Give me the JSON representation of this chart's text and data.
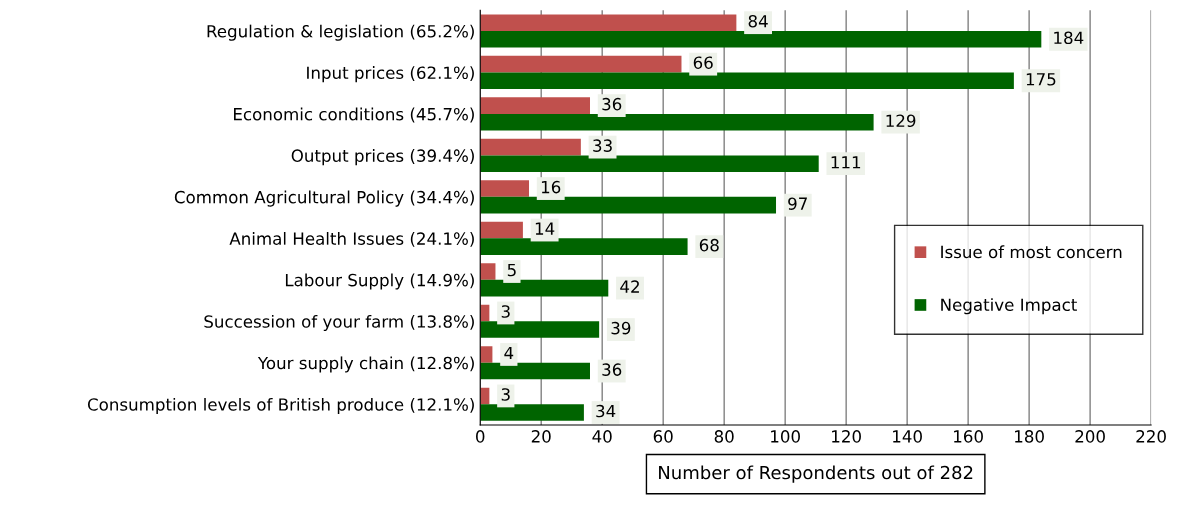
{
  "chart_data": {
    "type": "bar",
    "orientation": "horizontal",
    "categories": [
      "Regulation & legislation (65.2%)",
      "Input prices (62.1%)",
      "Economic conditions (45.7%)",
      "Output prices (39.4%)",
      "Common Agricultural Policy (34.4%)",
      "Animal Health Issues (24.1%)",
      "Labour Supply (14.9%)",
      "Succession of your farm (13.8%)",
      "Your supply chain (12.8%)",
      "Consumption levels of British produce (12.1%)"
    ],
    "series": [
      {
        "name": "Issue of most concern",
        "color": "#c0504d",
        "values": [
          84,
          66,
          36,
          33,
          16,
          14,
          5,
          3,
          4,
          3
        ]
      },
      {
        "name": "Negative Impact",
        "color": "#006400",
        "values": [
          184,
          175,
          129,
          111,
          97,
          68,
          42,
          39,
          36,
          34
        ]
      }
    ],
    "xlabel": "Number of Respondents out of 282",
    "xlim": [
      0,
      220
    ],
    "xticks": [
      0,
      20,
      40,
      60,
      80,
      100,
      120,
      140,
      160,
      180,
      200,
      220
    ],
    "grid": "x",
    "legend": "right",
    "data_labels": true
  }
}
